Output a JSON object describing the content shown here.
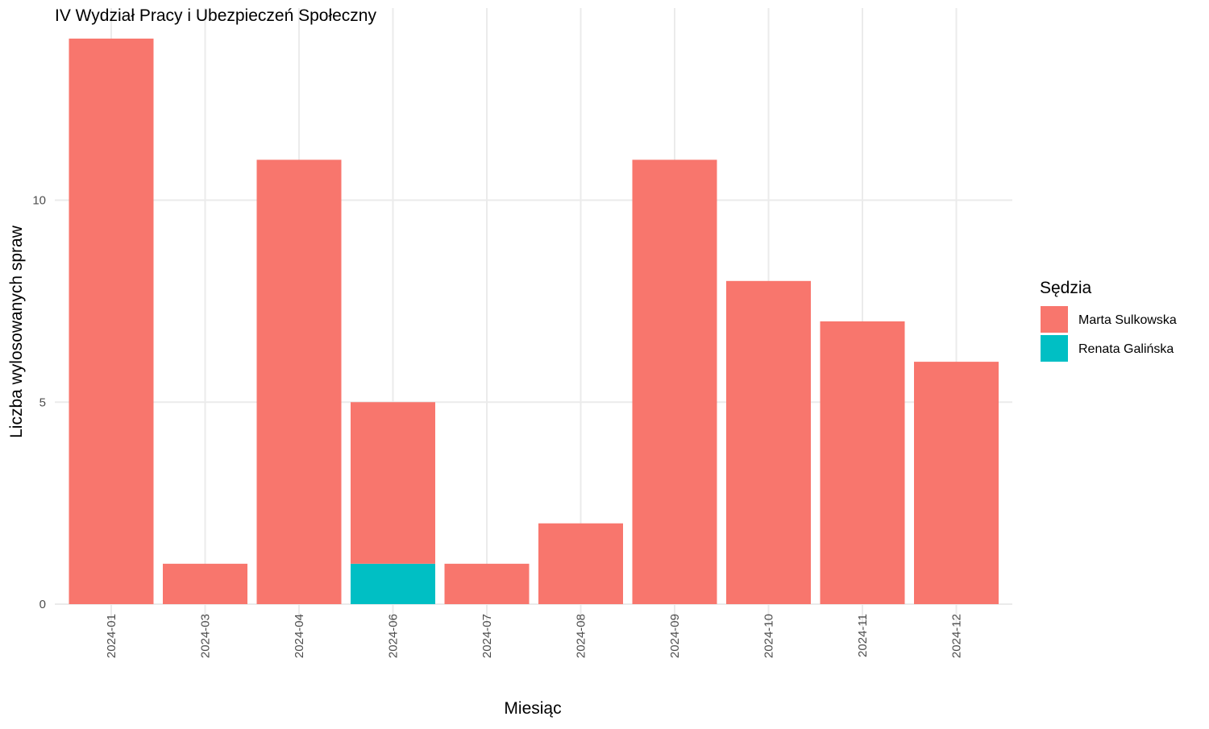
{
  "chart_data": {
    "type": "bar",
    "stacked": true,
    "title": "IV Wydział Pracy i Ubezpieczeń Społeczny",
    "xlabel": "Miesiąc",
    "ylabel": "Liczba wylosowanych spraw",
    "categories": [
      "2024-01",
      "2024-03",
      "2024-04",
      "2024-06",
      "2024-07",
      "2024-08",
      "2024-09",
      "2024-10",
      "2024-11",
      "2024-12"
    ],
    "series": [
      {
        "name": "Marta Sulkowska",
        "color": "#F8766D",
        "values": [
          14,
          1,
          11,
          4,
          1,
          2,
          11,
          8,
          7,
          6
        ]
      },
      {
        "name": "Renata Galińska",
        "color": "#00BFC4",
        "values": [
          0,
          0,
          0,
          1,
          0,
          0,
          0,
          0,
          0,
          0
        ]
      }
    ],
    "stack_order_bottom_to_top": [
      "Renata Galińska",
      "Marta Sulkowska"
    ],
    "yticks": [
      0,
      5,
      10
    ],
    "ylim": [
      0,
      14
    ],
    "grid": true,
    "legend": {
      "title": "Sędzia",
      "position": "right"
    }
  }
}
